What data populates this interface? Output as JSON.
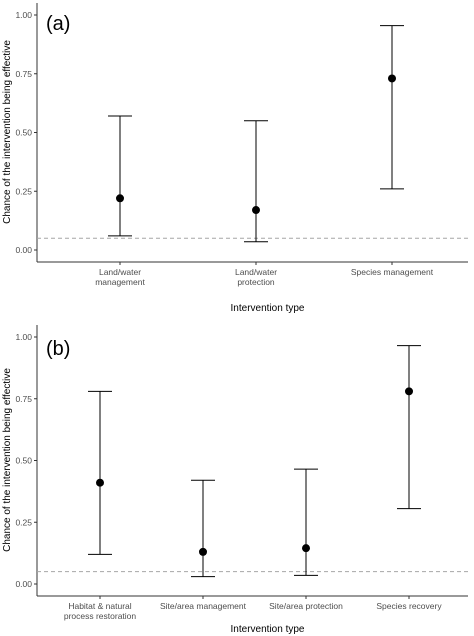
{
  "chart_data": [
    {
      "type": "scatter",
      "panel_label": "(a)",
      "ylabel": "Chance of the intervention being effective",
      "xlabel": "Intervention type",
      "ylim": [
        0,
        1
      ],
      "yticks": [
        "0.00",
        "0.25",
        "0.50",
        "0.75",
        "1.00"
      ],
      "ytick_values": [
        0,
        0.25,
        0.5,
        0.75,
        1.0
      ],
      "reference_line": 0.05,
      "grid": false,
      "categories": [
        [
          "Land/water",
          "management"
        ],
        [
          "Land/water",
          "protection"
        ],
        [
          "Species management"
        ]
      ],
      "estimates": [
        0.22,
        0.17,
        0.73
      ],
      "lower": [
        0.06,
        0.035,
        0.26
      ],
      "upper": [
        0.57,
        0.55,
        0.955
      ]
    },
    {
      "type": "scatter",
      "panel_label": "(b)",
      "ylabel": "Chance of the intervention being effective",
      "xlabel": "Intervention type",
      "ylim": [
        0,
        1
      ],
      "yticks": [
        "0.00",
        "0.25",
        "0.50",
        "0.75",
        "1.00"
      ],
      "ytick_values": [
        0,
        0.25,
        0.5,
        0.75,
        1.0
      ],
      "reference_line": 0.05,
      "grid": false,
      "categories": [
        [
          "Habitat & natural",
          "process restoration"
        ],
        [
          "Site/area management"
        ],
        [
          "Site/area protection"
        ],
        [
          "Species recovery"
        ]
      ],
      "estimates": [
        0.41,
        0.13,
        0.145,
        0.78
      ],
      "lower": [
        0.12,
        0.03,
        0.035,
        0.305
      ],
      "upper": [
        0.78,
        0.42,
        0.465,
        0.965
      ]
    }
  ],
  "colors": {
    "points": "#000000",
    "error_bars": "#000000",
    "reference_line": "#a6a6a6",
    "axis": "#333333",
    "tick_text": "#4d4d4d"
  }
}
